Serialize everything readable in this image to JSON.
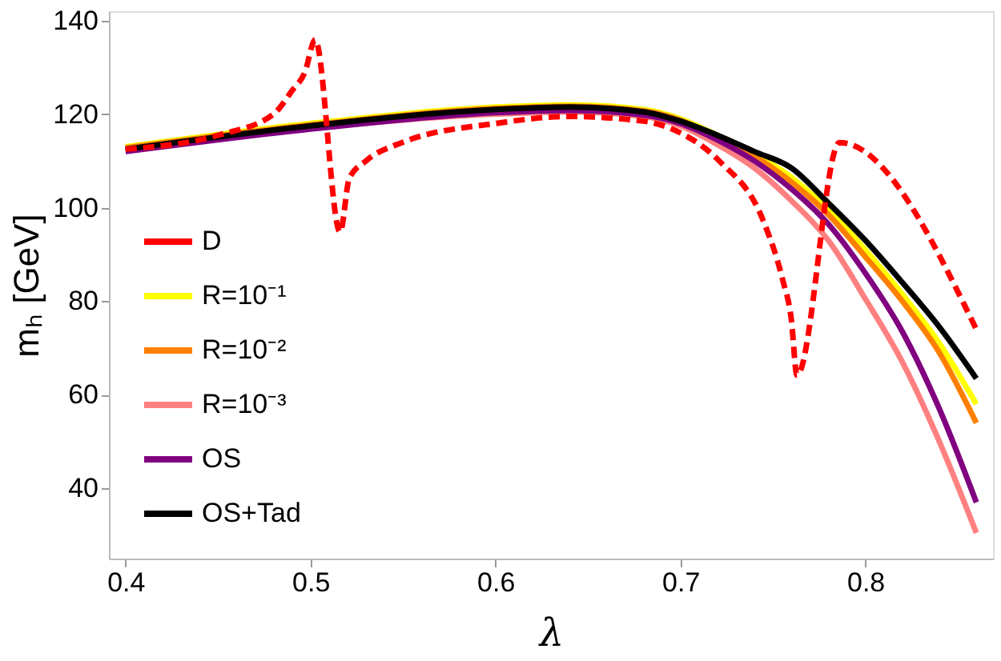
{
  "chart_data": {
    "type": "line",
    "xlabel": "λ",
    "ylabel": "mₕ [GeV]",
    "xlim": [
      0.391,
      0.869
    ],
    "xticks": [
      0.4,
      0.5,
      0.6,
      0.7,
      0.8
    ],
    "ylim": [
      25,
      142
    ],
    "yticks": [
      40,
      60,
      80,
      100,
      120,
      140
    ],
    "grid": false,
    "legend": "bottom left",
    "marker": "none",
    "series": [
      {
        "name": "D",
        "color": "#ff0000",
        "line_style": "dashed",
        "x": [
          0.4,
          0.45,
          0.48,
          0.49,
          0.497,
          0.5025,
          0.516,
          0.521,
          0.53,
          0.55,
          0.6,
          0.64,
          0.68,
          0.7,
          0.721,
          0.745,
          0.755,
          0.76,
          0.763,
          0.786,
          0.86
        ],
        "values": [
          112.5,
          115.5,
          120,
          125,
          129,
          135.9,
          94.8,
          106.3,
          110,
          114,
          118,
          119.5,
          118.5,
          116,
          110,
          97,
          85,
          76,
          64.2,
          113.9,
          74
        ]
      },
      {
        "name": "R=10⁻¹",
        "color": "#ffff00",
        "x": [
          0.4,
          0.5,
          0.6,
          0.64,
          0.68,
          0.7,
          0.72,
          0.74,
          0.76,
          0.78,
          0.8,
          0.82,
          0.84,
          0.86
        ],
        "values": [
          113,
          118,
          121.5,
          122,
          121,
          119,
          115.5,
          111.5,
          106.5,
          99.5,
          91,
          81.5,
          71,
          58
        ]
      },
      {
        "name": "R=10⁻²",
        "color": "#ff8000",
        "x": [
          0.4,
          0.5,
          0.6,
          0.64,
          0.68,
          0.7,
          0.72,
          0.74,
          0.76,
          0.78,
          0.8,
          0.82,
          0.84,
          0.86
        ],
        "values": [
          112.8,
          117.7,
          121.2,
          121.7,
          120.7,
          118.7,
          115,
          111,
          105.5,
          98.5,
          89.5,
          80,
          69,
          54
        ]
      },
      {
        "name": "R=10⁻³",
        "color": "#ff8080",
        "x": [
          0.4,
          0.5,
          0.6,
          0.64,
          0.68,
          0.7,
          0.72,
          0.74,
          0.76,
          0.78,
          0.8,
          0.82,
          0.84,
          0.86
        ],
        "values": [
          112.5,
          117,
          120,
          120.5,
          119.5,
          117.5,
          113.5,
          108.5,
          101.5,
          93,
          80.5,
          67,
          50,
          30.5
        ]
      },
      {
        "name": "OS",
        "color": "#800080",
        "x": [
          0.4,
          0.5,
          0.6,
          0.64,
          0.68,
          0.7,
          0.72,
          0.74,
          0.76,
          0.78,
          0.8,
          0.82,
          0.84,
          0.86
        ],
        "values": [
          112,
          116.8,
          120.3,
          120.8,
          119.8,
          118,
          114.5,
          110,
          104,
          96.5,
          86,
          73.5,
          57,
          37
        ]
      },
      {
        "name": "OS+Tad",
        "color": "#000000",
        "x": [
          0.4,
          0.5,
          0.6,
          0.64,
          0.68,
          0.7,
          0.72,
          0.74,
          0.76,
          0.78,
          0.8,
          0.82,
          0.84,
          0.86
        ],
        "values": [
          112.5,
          117.5,
          121,
          121.5,
          120.5,
          118.5,
          115.5,
          112,
          108.5,
          101,
          93,
          84,
          74.5,
          63.5
        ]
      }
    ]
  }
}
